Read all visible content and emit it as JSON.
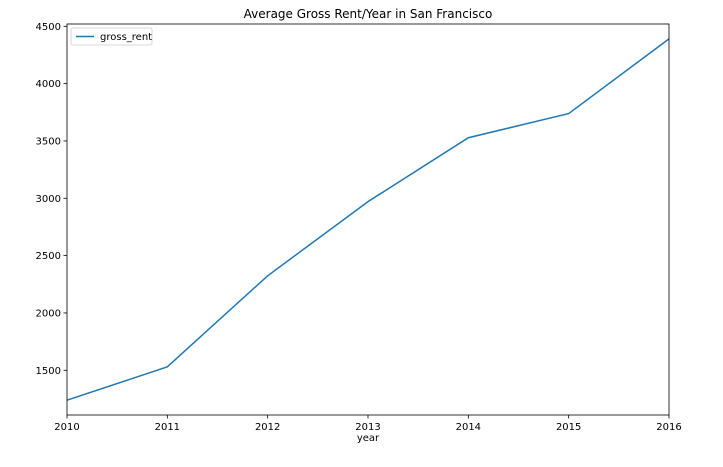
{
  "chart_data": {
    "type": "line",
    "title": "Average Gross Rent/Year in San Francisco",
    "xlabel": "year",
    "ylabel": "",
    "x": [
      2010,
      2011,
      2012,
      2013,
      2014,
      2015,
      2016
    ],
    "series": [
      {
        "name": "gross_rent",
        "color": "#1f77b4",
        "values": [
          1239,
          1530,
          2324,
          2971,
          3528,
          3739,
          4390
        ]
      }
    ],
    "xlim": [
      2010,
      2016
    ],
    "ylim": [
      1110,
      4520
    ],
    "xticks": [
      "2010",
      "2011",
      "2012",
      "2013",
      "2014",
      "2015",
      "2016"
    ],
    "yticks": [
      "1500",
      "2000",
      "2500",
      "3000",
      "3500",
      "4000",
      "4500"
    ],
    "grid": false,
    "legend_position": "upper-left"
  }
}
